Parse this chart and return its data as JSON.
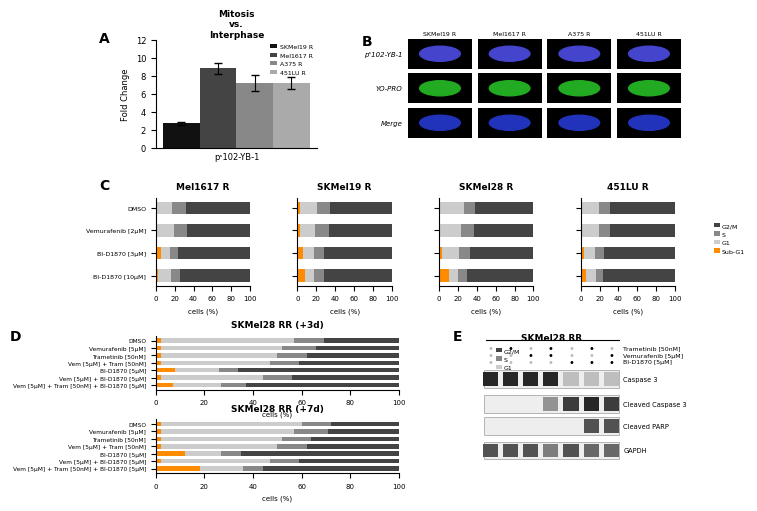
{
  "panel_A": {
    "title": "Mitosis\nvs.\nInterphase",
    "xlabel": "pˢ102-YB-1",
    "ylabel": "Fold Change",
    "bars": [
      2.7,
      8.8,
      7.2,
      7.2
    ],
    "errors": [
      0.2,
      0.6,
      0.9,
      0.7
    ],
    "colors": [
      "#111111",
      "#444444",
      "#888888",
      "#aaaaaa"
    ],
    "labels": [
      "SKMel19 R",
      "Mel1617 R",
      "A375 R",
      "451LU R"
    ],
    "ylim": [
      0,
      12
    ],
    "yticks": [
      0,
      2,
      4,
      6,
      8,
      10,
      12
    ]
  },
  "panel_C": {
    "titles": [
      "Mel1617 R",
      "SKMel19 R",
      "SKMel28 R",
      "451LU R"
    ],
    "ylabels": [
      "DMSO",
      "Vemurafenib [2μM]",
      "BI-D1870 [3μM]",
      "BI-D1870 [10μM]"
    ],
    "data": {
      "Mel1617 R": {
        "SubG1": [
          1,
          1,
          5,
          2
        ],
        "G1": [
          16,
          18,
          10,
          14
        ],
        "S": [
          15,
          14,
          8,
          10
        ],
        "G2M": [
          68,
          67,
          77,
          74
        ]
      },
      "SKMel19 R": {
        "SubG1": [
          3,
          3,
          6,
          8
        ],
        "G1": [
          18,
          16,
          12,
          10
        ],
        "S": [
          14,
          14,
          10,
          10
        ],
        "G2M": [
          65,
          67,
          72,
          72
        ]
      },
      "SKMel28 R": {
        "SubG1": [
          1,
          1,
          3,
          10
        ],
        "G1": [
          25,
          22,
          18,
          10
        ],
        "S": [
          12,
          14,
          12,
          10
        ],
        "G2M": [
          62,
          63,
          67,
          70
        ]
      },
      "451LU R": {
        "SubG1": [
          1,
          1,
          3,
          6
        ],
        "G1": [
          18,
          18,
          12,
          10
        ],
        "S": [
          12,
          12,
          10,
          8
        ],
        "G2M": [
          69,
          69,
          75,
          76
        ]
      }
    }
  },
  "panel_D": {
    "titles": [
      "SKMel28 RR (+3d)",
      "SKMel28 RR (+7d)"
    ],
    "ylabels": [
      "DMSO",
      "Vemurafenib [5μM]",
      "Trametinib [50nM]",
      "Vem [5μM] + Tram [50nM]",
      "BI-D1870 [5μM]",
      "Vem [5μM] + BI-D1870 [5μM]",
      "Vem [5μM] + Tram [50nM] + BI-D1870 [5μM]"
    ],
    "data_3d": {
      "SubG1": [
        2,
        2,
        2,
        2,
        8,
        2,
        7
      ],
      "G1": [
        55,
        50,
        48,
        45,
        18,
        42,
        20
      ],
      "S": [
        12,
        14,
        12,
        12,
        8,
        12,
        10
      ],
      "G2M": [
        31,
        34,
        38,
        41,
        66,
        44,
        63
      ]
    },
    "data_7d": {
      "SubG1": [
        2,
        2,
        2,
        2,
        12,
        2,
        18
      ],
      "G1": [
        58,
        55,
        50,
        48,
        15,
        45,
        18
      ],
      "S": [
        12,
        14,
        12,
        12,
        8,
        12,
        8
      ],
      "G2M": [
        28,
        29,
        36,
        38,
        65,
        41,
        56
      ]
    }
  },
  "colors": {
    "G2M": "#444444",
    "S": "#888888",
    "G1": "#cccccc",
    "SubG1": "#ff8c00"
  },
  "panel_E": {
    "title": "SKMel28 RR",
    "rows": [
      "Caspase 3",
      "Cleaved Caspase 3",
      "Cleaved PARP",
      "GAPDH"
    ],
    "treat_labels": [
      "Trametinib [50nM]",
      "Vemurafenib [5μM]",
      "BI-D1870 [5μM]"
    ],
    "treat_dots": {
      "Trametinib [50nM]": [
        0,
        1,
        0,
        1,
        0,
        1,
        0
      ],
      "Vemurafenib [5μM]": [
        0,
        0,
        1,
        1,
        0,
        0,
        1
      ],
      "BI-D1870 [5μM]": [
        0,
        0,
        0,
        0,
        1,
        1,
        1
      ]
    },
    "band_patterns": {
      "Caspase 3": [
        1.0,
        1.0,
        1.0,
        1.0,
        0.3,
        0.3,
        0.3
      ],
      "Cleaved Caspase 3": [
        0.0,
        0.0,
        0.0,
        0.5,
        0.9,
        1.0,
        0.9
      ],
      "Cleaved PARP": [
        0.0,
        0.0,
        0.0,
        0.0,
        0.0,
        0.8,
        0.8
      ],
      "GAPDH": [
        0.8,
        0.8,
        0.8,
        0.6,
        0.8,
        0.7,
        0.7
      ]
    }
  },
  "panel_B": {
    "col_labels": [
      "SKMel19 R",
      "Mel1617 R",
      "A375 R",
      "451LU R"
    ],
    "row_labels": [
      "pˢ102-YB-1",
      "YO-PRO",
      "Merge"
    ],
    "row_colors": [
      "#4444cc",
      "#22aa22",
      "#2233bb"
    ]
  }
}
